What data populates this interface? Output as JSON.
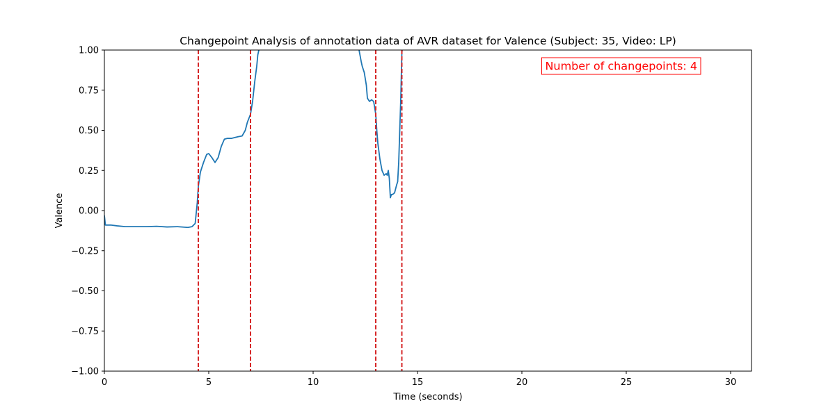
{
  "chart_data": {
    "type": "line",
    "title": "Changepoint Analysis of annotation data of AVR dataset for Valence (Subject: 35, Video: LP)",
    "xlabel": "Time (seconds)",
    "ylabel": "Valence",
    "xlim": [
      0,
      31
    ],
    "ylim": [
      -1.0,
      1.0
    ],
    "xticks": [
      0,
      5,
      10,
      15,
      20,
      25,
      30
    ],
    "xtick_labels": [
      "0",
      "5",
      "10",
      "15",
      "20",
      "25",
      "30"
    ],
    "yticks": [
      -1.0,
      -0.75,
      -0.5,
      -0.25,
      0.0,
      0.25,
      0.5,
      0.75,
      1.0
    ],
    "ytick_labels": [
      "−1.00",
      "−0.75",
      "−0.50",
      "−0.25",
      "0.00",
      "0.25",
      "0.50",
      "0.75",
      "1.00"
    ],
    "grid": false,
    "series": [
      {
        "color": "#1f77b4",
        "x": [
          0.0,
          0.05,
          0.3,
          0.6,
          1.0,
          1.5,
          2.0,
          2.5,
          3.0,
          3.5,
          4.0,
          4.2,
          4.35,
          4.45,
          4.5,
          4.6,
          4.75,
          4.9,
          5.0,
          5.15,
          5.3,
          5.45,
          5.6,
          5.75,
          5.9,
          6.1,
          6.4,
          6.6,
          6.75,
          6.85,
          7.0,
          7.1,
          7.2,
          7.3,
          7.35,
          7.4,
          7.45,
          7.5
        ],
        "values": [
          -0.03,
          -0.09,
          -0.09,
          -0.095,
          -0.1,
          -0.1,
          -0.1,
          -0.098,
          -0.102,
          -0.1,
          -0.105,
          -0.1,
          -0.08,
          0.05,
          0.15,
          0.24,
          0.3,
          0.35,
          0.355,
          0.33,
          0.3,
          0.33,
          0.4,
          0.445,
          0.45,
          0.45,
          0.46,
          0.465,
          0.5,
          0.55,
          0.6,
          0.68,
          0.8,
          0.9,
          0.97,
          1.0,
          1.03,
          1.06
        ]
      },
      {
        "color": "#1f77b4",
        "x": [
          12.1,
          12.2,
          12.3,
          12.35,
          12.45,
          12.55,
          12.6,
          12.7,
          12.8,
          12.9,
          13.0,
          13.05,
          13.1,
          13.2,
          13.3,
          13.4,
          13.5,
          13.55,
          13.6,
          13.65,
          13.7,
          13.75,
          13.8,
          13.9,
          14.0,
          14.05,
          14.1,
          14.2,
          14.25,
          14.3
        ],
        "values": [
          1.05,
          1.0,
          0.93,
          0.9,
          0.86,
          0.78,
          0.7,
          0.68,
          0.69,
          0.68,
          0.6,
          0.5,
          0.42,
          0.32,
          0.25,
          0.22,
          0.23,
          0.22,
          0.25,
          0.2,
          0.08,
          0.1,
          0.1,
          0.11,
          0.16,
          0.18,
          0.3,
          0.7,
          0.98,
          1.05
        ]
      }
    ],
    "changepoints": [
      4.5,
      7.0,
      13.0,
      14.25
    ],
    "changepoint_color": "#d62728",
    "annotation": {
      "text": "Number of changepoints: 4",
      "color": "#ff0000",
      "position": "top-right"
    }
  }
}
